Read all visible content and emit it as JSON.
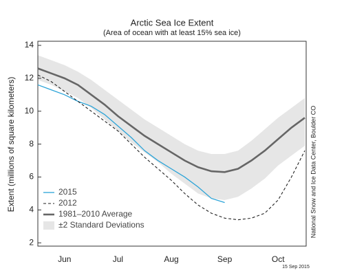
{
  "chart_data": {
    "type": "line",
    "title": "Arctic Sea Ice Extent",
    "subtitle": "(Area of ocean with at least 15% sea ice)",
    "y_label": "Extent (millions of square kilometers)",
    "source": "National Snow and Ice Data Center, Boulder CO",
    "date": "15 Sep 2015",
    "categories": [
      null,
      null,
      "Jun",
      null,
      null,
      null,
      "Jul",
      null,
      null,
      null,
      "Aug",
      null,
      null,
      null,
      "Sep",
      null,
      null,
      null,
      "Oct",
      null,
      null
    ],
    "ylim": [
      1.8,
      14.25
    ],
    "yticks": [
      2,
      4,
      6,
      8,
      10,
      12,
      14
    ],
    "legend": "lower left",
    "band": {
      "name": "±2 Standard Deviations",
      "color": "#e6e6e6",
      "upper": [
        13.4,
        13.1,
        12.8,
        12.4,
        11.9,
        11.3,
        10.7,
        10.1,
        9.5,
        9.0,
        8.5,
        8.0,
        7.6,
        7.4,
        7.4,
        7.6,
        8.2,
        8.9,
        9.6,
        10.2,
        10.8
      ],
      "lower": [
        11.9,
        11.6,
        11.2,
        10.8,
        10.2,
        9.5,
        8.8,
        8.1,
        7.5,
        6.9,
        6.2,
        5.6,
        5.0,
        4.7,
        4.6,
        4.8,
        5.3,
        5.9,
        6.7,
        7.3,
        7.9
      ]
    },
    "series": [
      {
        "name": "2015",
        "color": "#2aa3d8",
        "dashed": false,
        "width": 1.3,
        "values": [
          11.6,
          11.3,
          11.0,
          10.6,
          10.3,
          9.8,
          9.1,
          8.4,
          7.6,
          7.0,
          6.5,
          6.0,
          5.4,
          4.7,
          4.45,
          null,
          null,
          null,
          null,
          null,
          null
        ]
      },
      {
        "name": "2012",
        "color": "#222222",
        "dashed": true,
        "width": 1.1,
        "values": [
          12.2,
          11.8,
          11.2,
          10.6,
          10.0,
          9.4,
          8.8,
          8.0,
          7.2,
          6.5,
          5.8,
          5.0,
          4.3,
          3.8,
          3.5,
          3.4,
          3.5,
          3.8,
          4.6,
          6.0,
          7.6
        ]
      },
      {
        "name": "1981–2010 Average",
        "color": "#666666",
        "dashed": false,
        "width": 2.6,
        "values": [
          12.6,
          12.3,
          12.0,
          11.6,
          11.0,
          10.4,
          9.7,
          9.1,
          8.5,
          8.0,
          7.5,
          7.0,
          6.6,
          6.35,
          6.3,
          6.5,
          7.0,
          7.6,
          8.3,
          9.0,
          9.6
        ]
      }
    ]
  }
}
